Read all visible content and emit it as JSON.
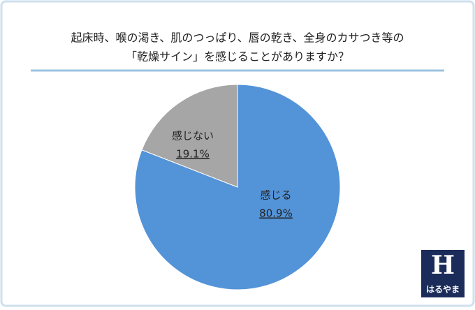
{
  "chart_data": {
    "type": "pie",
    "title": [
      "起床時、喉の渇き、肌のつっぱり、唇の乾き、全身のカサつき等の",
      "「乾燥サイン」を感じることがありますか？"
    ],
    "categories": [
      "感じる",
      "感じない"
    ],
    "values": [
      80.9,
      19.1
    ],
    "value_labels": [
      "80.9%",
      "19.1%"
    ],
    "colors": [
      "#5393d8",
      "#a6a6a6"
    ]
  },
  "logo": {
    "letter": "H",
    "text": "はるやま"
  }
}
